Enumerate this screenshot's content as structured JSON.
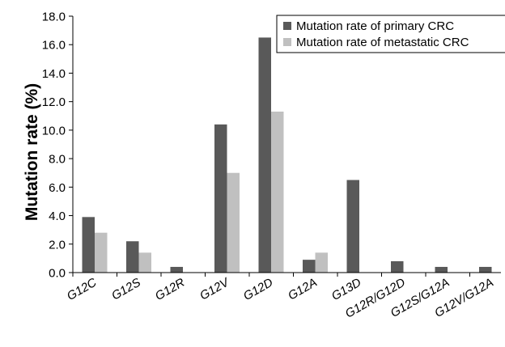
{
  "chart_data": {
    "type": "bar",
    "title": "",
    "xlabel": "",
    "ylabel": "Mutation rate (%)",
    "ylim": [
      0,
      18
    ],
    "yticks": [
      "0.0",
      "2.0",
      "4.0",
      "6.0",
      "8.0",
      "10.0",
      "12.0",
      "14.0",
      "16.0",
      "18.0"
    ],
    "grid": false,
    "legend_position": "top-right",
    "categories": [
      "G12C",
      "G12S",
      "G12R",
      "G12V",
      "G12D",
      "G12A",
      "G13D",
      "G12R/G12D",
      "G12S/G12A",
      "G12V/G12A"
    ],
    "series": [
      {
        "name": "Mutation rate of primary CRC",
        "color": "#595959",
        "values": [
          3.9,
          2.2,
          0.4,
          10.4,
          16.5,
          0.9,
          6.5,
          0.8,
          0.4,
          0.4
        ]
      },
      {
        "name": "Mutation rate of metastatic CRC",
        "color": "#c0c0c0",
        "values": [
          2.8,
          1.4,
          0.0,
          7.0,
          11.3,
          1.4,
          0.0,
          0.0,
          0.0,
          0.0
        ]
      }
    ]
  }
}
